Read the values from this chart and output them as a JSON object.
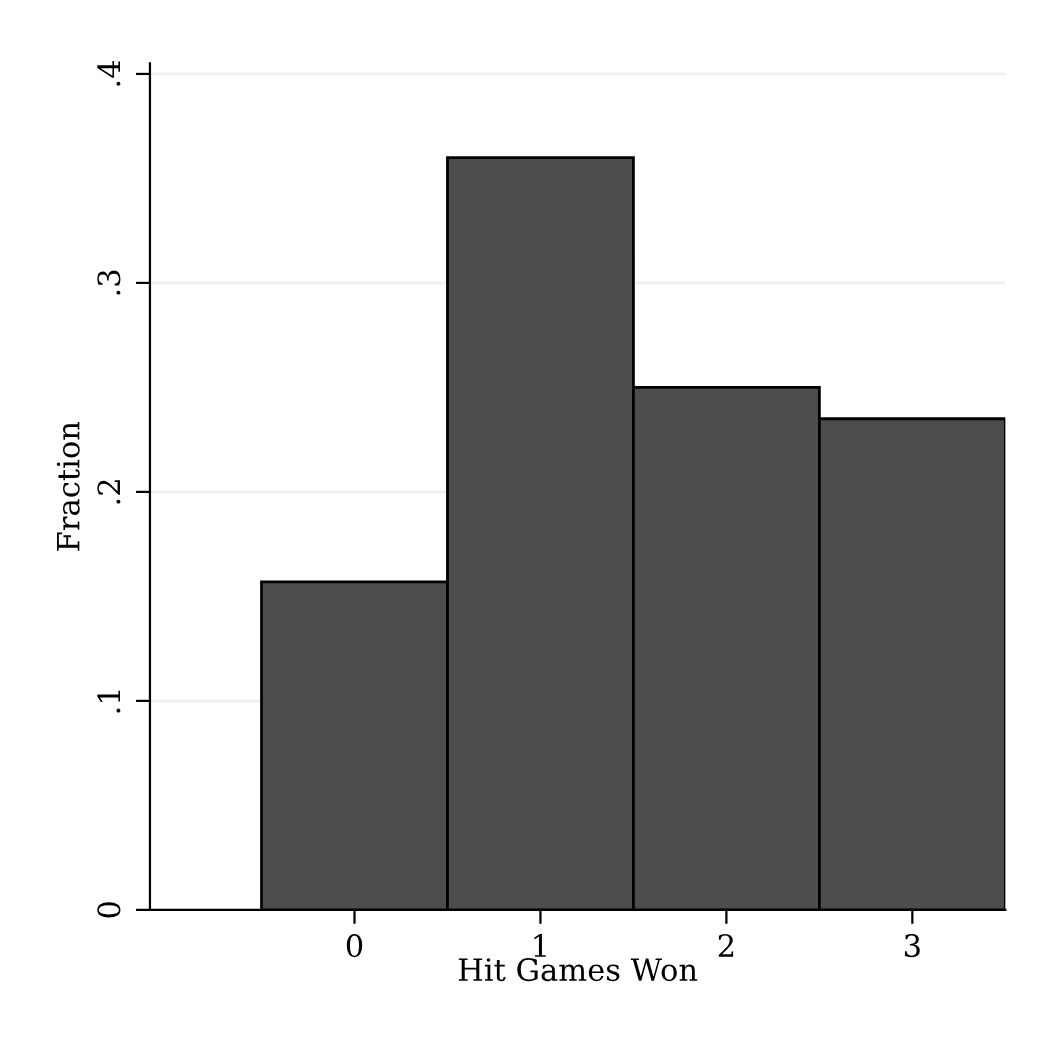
{
  "chart_data": {
    "type": "histogram",
    "xlabel": "Hit Games Won",
    "ylabel": "Fraction",
    "bins": [
      -0.5,
      0.5,
      1.5,
      2.5,
      3.5
    ],
    "values": [
      0.157,
      0.36,
      0.25,
      0.235
    ],
    "color": "#4d4d4d",
    "xlim": [
      -1.1,
      3.5
    ],
    "ylim": [
      0,
      0.405
    ],
    "xticks": [
      0,
      1,
      2,
      3
    ],
    "yticks": [
      0,
      {
        "value": 0.1,
        "label": ".1"
      },
      {
        "value": 0.2,
        "label": ".2"
      },
      {
        "value": 0.3,
        "label": ".3"
      },
      {
        "value": 0.4,
        "label": ".4"
      }
    ],
    "grid": "y"
  }
}
